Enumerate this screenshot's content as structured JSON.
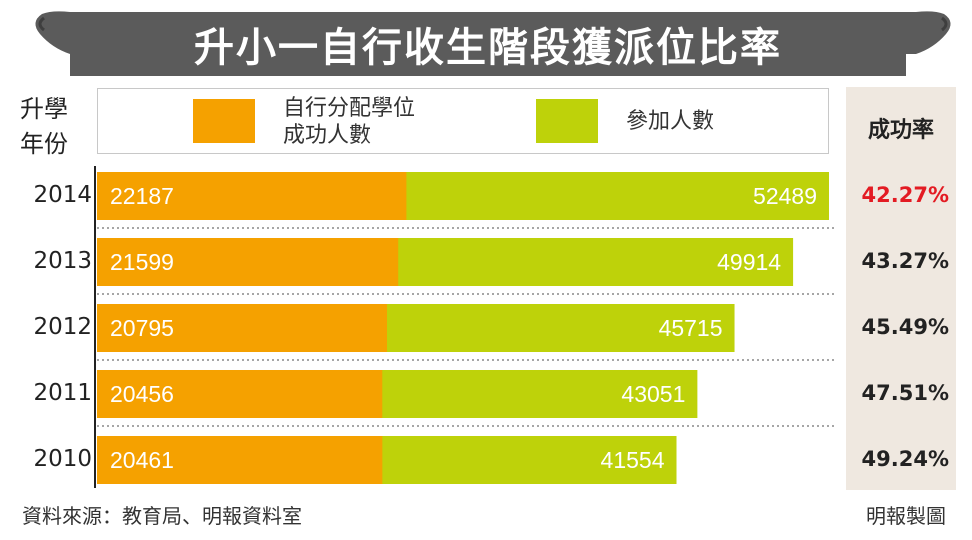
{
  "chart_data": {
    "type": "bar",
    "orientation": "horizontal",
    "title": "升小一自行收生階段獲派位比率",
    "year_header": "升學年份",
    "rate_header": "成功率",
    "categories": [
      "2014",
      "2013",
      "2012",
      "2011",
      "2010"
    ],
    "series": [
      {
        "name": "自行分配學位成功人數",
        "color": "#f5a100",
        "values": [
          22187,
          21599,
          20795,
          20456,
          20461
        ]
      },
      {
        "name": "參加人數",
        "color": "#bed20a",
        "values": [
          52489,
          49914,
          45715,
          43051,
          41554
        ]
      }
    ],
    "success_rates": [
      "42.27%",
      "43.27%",
      "45.49%",
      "47.51%",
      "49.24%"
    ],
    "highlight_color": "#e31b23",
    "xlim": [
      0,
      52489
    ],
    "source": "資料來源：教育局、明報資料室",
    "credit": "明報製圖"
  },
  "legend": {
    "item1": {
      "line1": "自行分配學位",
      "line2": "成功人數"
    },
    "item2": {
      "line1": "參加人數"
    }
  },
  "header": {
    "year_line1": "升學",
    "year_line2": "年份"
  }
}
